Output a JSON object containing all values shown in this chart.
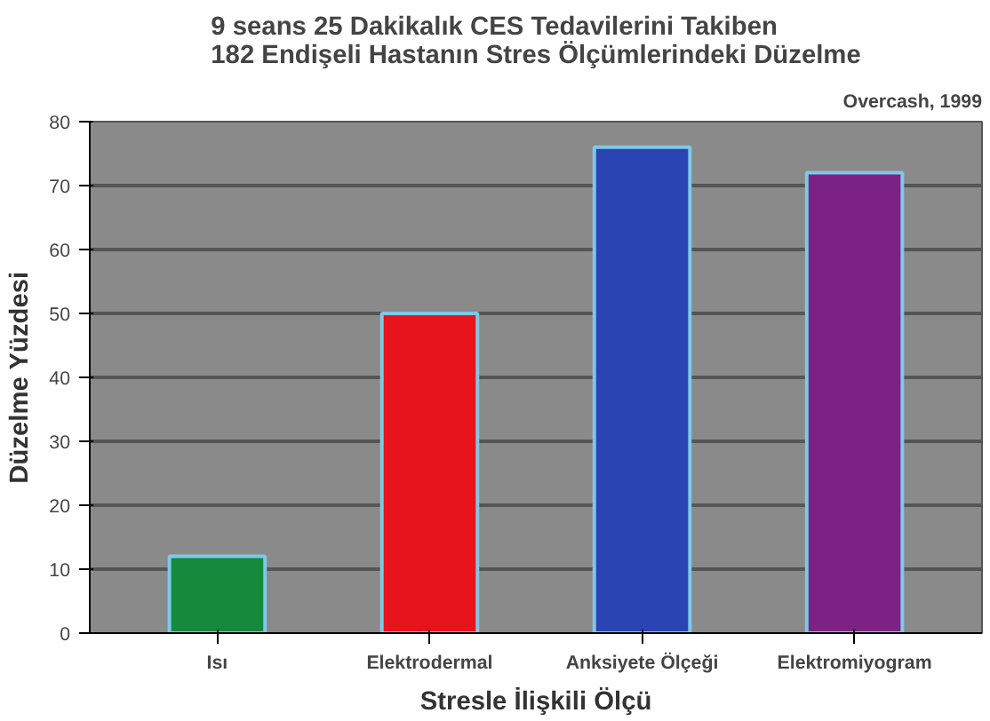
{
  "chart_data": {
    "type": "bar",
    "title": "9 seans 25 Dakikalık CES Tedavilerini Takiben\n182 Endişeli Hastanın Stres Ölçümlerindeki Düzelme",
    "xlabel": "Stresle İlişkili Ölçü",
    "ylabel": "Düzelme Yüzdesi",
    "annotations": [
      "Overcash, 1999"
    ],
    "categories": [
      "Isı",
      "Elektrodermal",
      "Anksiyete Ölçeği",
      "Elektromiyogram"
    ],
    "values": [
      12,
      50,
      76,
      72
    ],
    "colors": [
      "#17893c",
      "#e8141c",
      "#2a44b4",
      "#7d2285"
    ],
    "ylim": [
      0,
      80
    ],
    "yticks": [
      0,
      10,
      20,
      30,
      40,
      50,
      60,
      70,
      80
    ],
    "grid": "y"
  }
}
